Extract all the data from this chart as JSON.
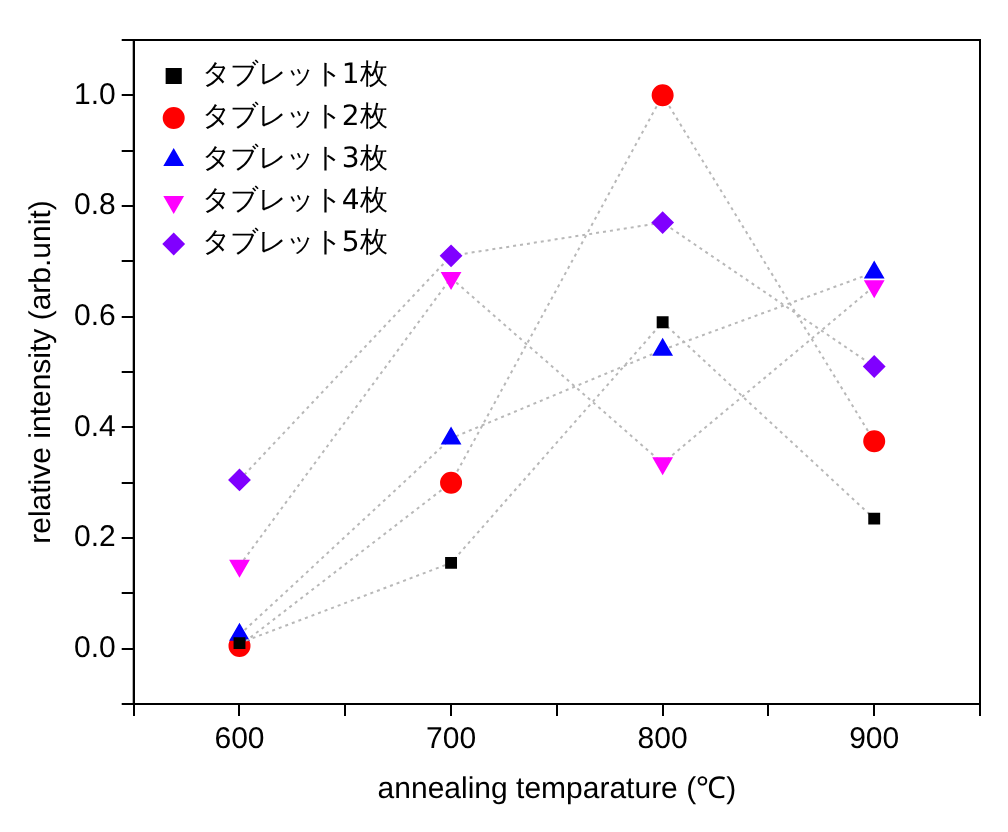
{
  "chart_data": {
    "type": "line",
    "xlabel": "annealing temparature (℃)",
    "ylabel": "relative intensity (arb.unit)",
    "x": [
      600,
      700,
      800,
      900
    ],
    "xlim": [
      550,
      950
    ],
    "xticks": [
      {
        "value": 550,
        "label": null
      },
      600,
      {
        "value": 650,
        "label": null
      },
      700,
      {
        "value": 750,
        "label": null
      },
      800,
      {
        "value": 850,
        "label": null
      },
      900,
      {
        "value": 950,
        "label": null
      }
    ],
    "ylim": [
      -0.1,
      1.1
    ],
    "yticks": [
      {
        "value": -0.1,
        "label": null
      },
      {
        "value": 0,
        "label": "0.0"
      },
      {
        "value": 0.1,
        "label": null
      },
      {
        "value": 0.2,
        "label": "0.2"
      },
      {
        "value": 0.3,
        "label": null
      },
      {
        "value": 0.4,
        "label": "0.4"
      },
      {
        "value": 0.5,
        "label": null
      },
      {
        "value": 0.6,
        "label": "0.6"
      },
      {
        "value": 0.7,
        "label": null
      },
      {
        "value": 0.8,
        "label": "0.8"
      },
      {
        "value": 0.9,
        "label": null
      },
      {
        "value": 1.0,
        "label": "1.0"
      },
      {
        "value": 1.1,
        "label": null
      }
    ],
    "grid": false,
    "legend": "top left",
    "line_style": "dotted",
    "series": [
      {
        "name": "タブレット1枚",
        "color": "#000000",
        "marker": "square",
        "values": [
          0.01,
          0.155,
          0.59,
          0.235
        ]
      },
      {
        "name": "タブレット2枚",
        "color": "#ff0000",
        "marker": "circle",
        "values": [
          0.005,
          0.3,
          1.0,
          0.375
        ]
      },
      {
        "name": "タブレット3枚",
        "color": "#0000ff",
        "marker": "triangle",
        "values": [
          0.025,
          0.38,
          0.54,
          0.68
        ]
      },
      {
        "name": "タブレット4枚",
        "color": "#ff00ff",
        "marker": "triangle-down",
        "values": [
          0.15,
          0.67,
          0.335,
          0.655
        ]
      },
      {
        "name": "タブレット5枚",
        "color": "#8000ff",
        "marker": "diamond",
        "values": [
          0.305,
          0.71,
          0.77,
          0.51
        ]
      }
    ]
  }
}
